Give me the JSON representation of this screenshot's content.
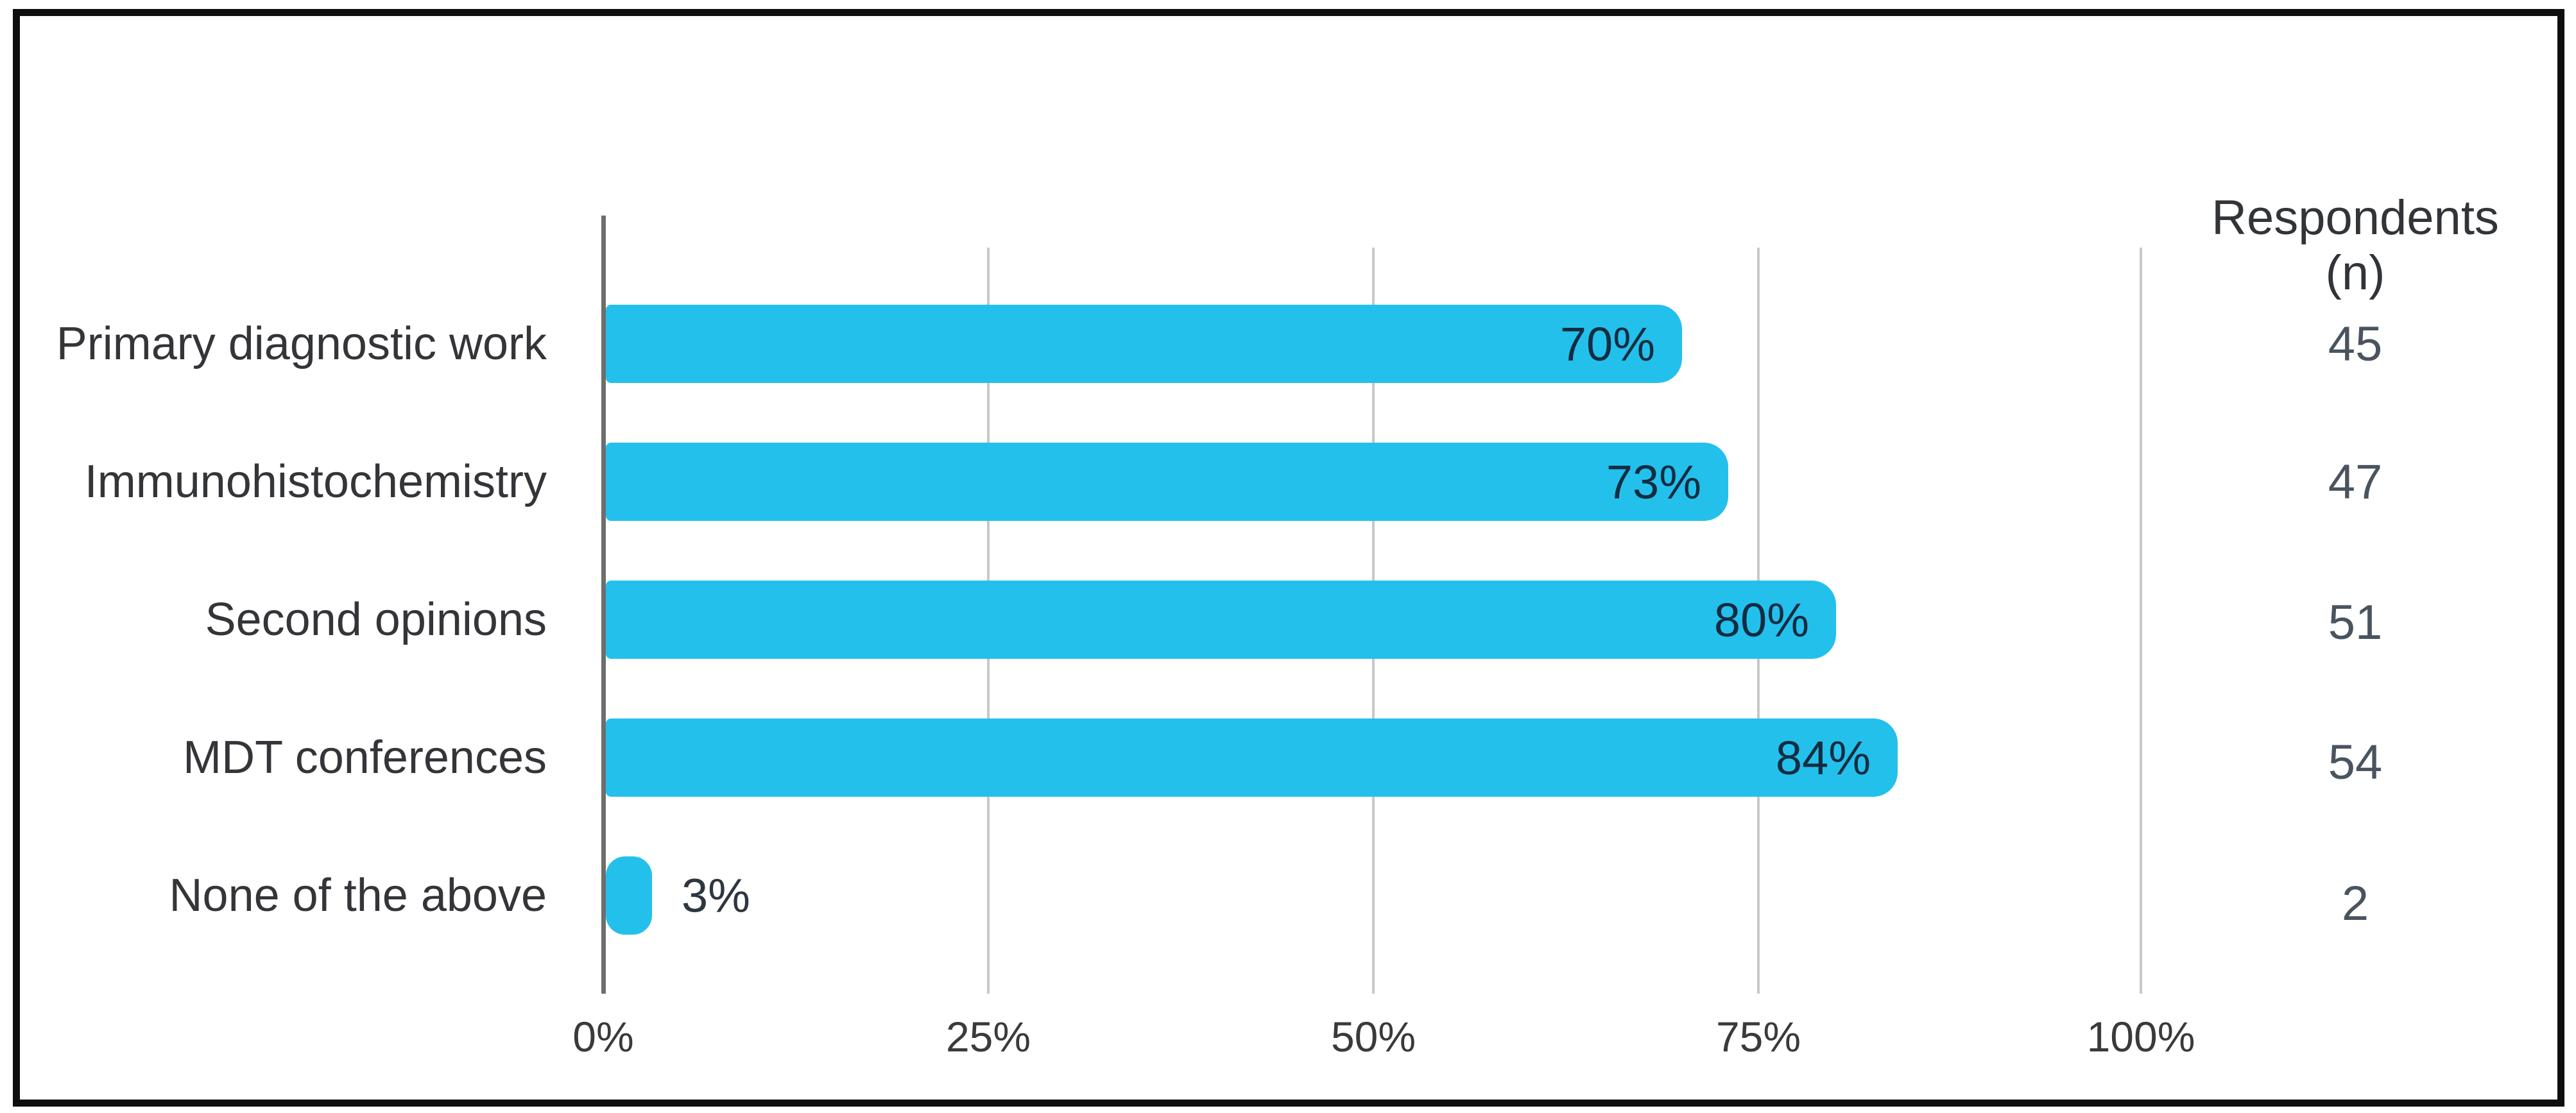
{
  "respondents_column": {
    "header_line1": "Respondents",
    "header_line2": "(n)"
  },
  "chart_data": {
    "type": "bar",
    "orientation": "horizontal",
    "title": "",
    "categories": [
      "Primary diagnostic work",
      "Immunohistochemistry",
      "Second opinions",
      "MDT conferences",
      "None of the above"
    ],
    "values": [
      70,
      73,
      80,
      84,
      3
    ],
    "value_labels": [
      "70%",
      "73%",
      "80%",
      "84%",
      "3%"
    ],
    "respondents": [
      45,
      47,
      51,
      54,
      2
    ],
    "x_axis": {
      "tick_labels": [
        "0%",
        "25%",
        "50%",
        "75%",
        "100%"
      ],
      "tick_values": [
        0,
        25,
        50,
        75,
        100
      ],
      "range": [
        0,
        100
      ]
    },
    "legend": "none",
    "grid": "vertical-gridlines",
    "bar_color": "#24c0ec",
    "data_label_color": "#142c41",
    "axis_line_color": "#6e6e6e",
    "gridline_color": "#c8c8c8",
    "frame_color": "#0e0e0e"
  }
}
